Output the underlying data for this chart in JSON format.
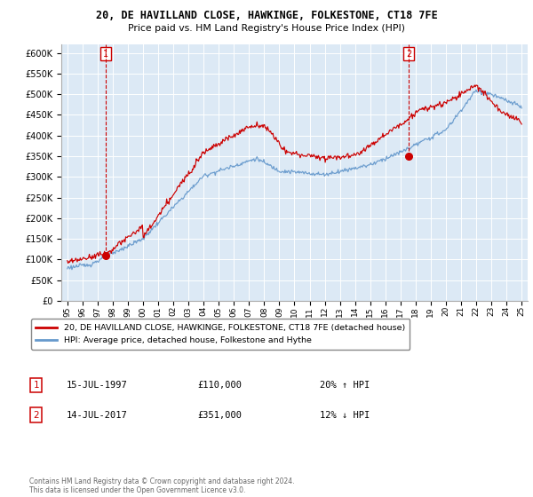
{
  "title": "20, DE HAVILLAND CLOSE, HAWKINGE, FOLKESTONE, CT18 7FE",
  "subtitle": "Price paid vs. HM Land Registry's House Price Index (HPI)",
  "legend_line1": "20, DE HAVILLAND CLOSE, HAWKINGE, FOLKESTONE, CT18 7FE (detached house)",
  "legend_line2": "HPI: Average price, detached house, Folkestone and Hythe",
  "ann1_label": "1",
  "ann1_date": "15-JUL-1997",
  "ann1_price": "£110,000",
  "ann1_hpi": "20% ↑ HPI",
  "ann2_label": "2",
  "ann2_date": "14-JUL-2017",
  "ann2_price": "£351,000",
  "ann2_hpi": "12% ↓ HPI",
  "footer": "Contains HM Land Registry data © Crown copyright and database right 2024.\nThis data is licensed under the Open Government Licence v3.0.",
  "red_color": "#cc0000",
  "blue_color": "#6699cc",
  "chart_bg": "#dce9f5",
  "ylim": [
    0,
    620000
  ],
  "ytick_vals": [
    0,
    50000,
    100000,
    150000,
    200000,
    250000,
    300000,
    350000,
    400000,
    450000,
    500000,
    550000,
    600000
  ],
  "xlim": [
    1994.6,
    2025.4
  ],
  "sale1_x": 1997.54,
  "sale1_y": 110000,
  "sale2_x": 2017.54,
  "sale2_y": 351000,
  "xtick_years": [
    1995,
    1996,
    1997,
    1998,
    1999,
    2000,
    2001,
    2002,
    2003,
    2004,
    2005,
    2006,
    2007,
    2008,
    2009,
    2010,
    2011,
    2012,
    2013,
    2014,
    2015,
    2016,
    2017,
    2018,
    2019,
    2020,
    2021,
    2022,
    2023,
    2024,
    2025
  ],
  "xtick_labels": [
    "95",
    "96",
    "97",
    "98",
    "99",
    "00",
    "01",
    "02",
    "03",
    "04",
    "05",
    "06",
    "07",
    "08",
    "09",
    "10",
    "11",
    "12",
    "13",
    "14",
    "15",
    "16",
    "17",
    "18",
    "19",
    "20",
    "21",
    "22",
    "23",
    "24",
    "25"
  ]
}
